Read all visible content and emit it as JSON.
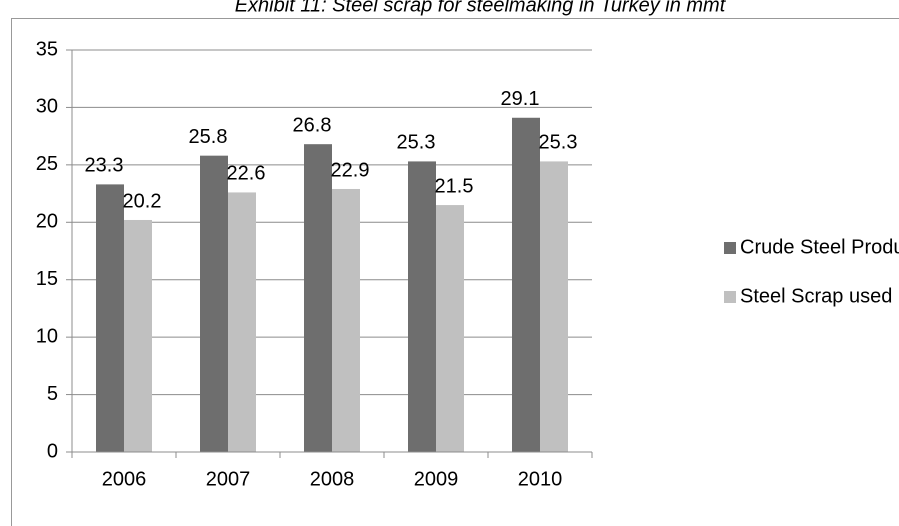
{
  "chart_data": {
    "type": "bar",
    "title": "Exhibit 11: Steel scrap for steelmaking in Turkey in mmt",
    "categories": [
      "2006",
      "2007",
      "2008",
      "2009",
      "2010"
    ],
    "series": [
      {
        "name": "Crude Steel Production",
        "color": "#6e6e6e",
        "values": [
          23.3,
          25.8,
          26.8,
          25.3,
          29.1
        ]
      },
      {
        "name": "Steel Scrap used",
        "color": "#c0c0c0",
        "values": [
          20.2,
          22.6,
          22.9,
          21.5,
          25.3
        ]
      }
    ],
    "ylim": [
      0,
      35
    ],
    "yticks": [
      0,
      5,
      10,
      15,
      20,
      25,
      30,
      35
    ],
    "grid": true,
    "legend": "right"
  }
}
